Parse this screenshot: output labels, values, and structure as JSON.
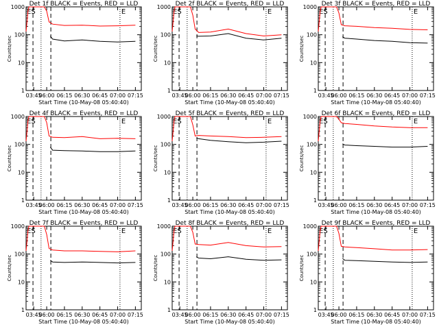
{
  "chart_data": [
    {
      "type": "line",
      "title": "Det 1f BLACK = Events, RED = LLD",
      "xlabel": "Start Time (10-May-08 05:40:40)",
      "ylabel": "Counts/sec",
      "y_scale": "log",
      "ylim": [
        1,
        1000
      ],
      "xlim": [
        "03:37",
        "07:20"
      ],
      "x_ticks": [
        "03:45",
        "06:00",
        "06:15",
        "06:30",
        "06:45",
        "07:00",
        "07:15"
      ],
      "y_ticks": [
        "1",
        "10",
        "100",
        "1000"
      ],
      "markers": [
        "ES",
        "E"
      ],
      "series": [
        {
          "color": "#ff0000",
          "x": [
            "03:37",
            "03:38",
            "03:39",
            "03:40",
            "03:42",
            "03:44",
            "05:58",
            "06:00",
            "06:02",
            "06:05",
            "06:15",
            "06:30",
            "06:45",
            "07:00",
            "07:15"
          ],
          "values": [
            130,
            300,
            700,
            1000,
            1000,
            1000,
            1000,
            700,
            290,
            240,
            215,
            220,
            205,
            210,
            220
          ]
        },
        {
          "color": "#000000",
          "x": [
            "06:03",
            "06:05",
            "06:15",
            "06:30",
            "06:45",
            "07:00",
            "07:15"
          ],
          "values": [
            90,
            70,
            60,
            65,
            58,
            55,
            58
          ]
        }
      ]
    },
    {
      "type": "line",
      "title": "Det 2f BLACK = Events, RED = LLD",
      "xlabel": "Start Time (10-May-08 05:40:40)",
      "ylabel": "Counts/sec",
      "y_scale": "log",
      "ylim": [
        1,
        1000
      ],
      "xlim": [
        "03:37",
        "07:20"
      ],
      "x_ticks": [
        "03:45",
        "06:00",
        "06:15",
        "06:30",
        "06:45",
        "07:00",
        "07:15"
      ],
      "y_ticks": [
        "1",
        "10",
        "100",
        "1000"
      ],
      "markers": [
        "ES",
        "E"
      ],
      "series": [
        {
          "color": "#ff0000",
          "x": [
            "03:37",
            "03:38",
            "03:39",
            "03:40",
            "03:42",
            "03:44",
            "05:58",
            "06:00",
            "06:02",
            "06:05",
            "06:15",
            "06:30",
            "06:45",
            "07:00",
            "07:15"
          ],
          "values": [
            130,
            300,
            700,
            1000,
            1000,
            1000,
            1000,
            500,
            160,
            120,
            125,
            160,
            110,
            90,
            100
          ]
        },
        {
          "color": "#000000",
          "x": [
            "06:03",
            "06:05",
            "06:15",
            "06:30",
            "06:45",
            "07:00",
            "07:15"
          ],
          "values": [
            90,
            88,
            90,
            110,
            75,
            65,
            75
          ]
        }
      ]
    },
    {
      "type": "line",
      "title": "Det 3f BLACK = Events, RED = LLD",
      "xlabel": "Start Time (10-May-08 05:40:40)",
      "ylabel": "Counts/sec",
      "y_scale": "log",
      "ylim": [
        1,
        1000
      ],
      "xlim": [
        "03:37",
        "07:20"
      ],
      "x_ticks": [
        "03:45",
        "06:00",
        "06:15",
        "06:30",
        "06:45",
        "07:00",
        "07:15"
      ],
      "y_ticks": [
        "1",
        "10",
        "100",
        "1000"
      ],
      "markers": [
        "ES",
        "E"
      ],
      "series": [
        {
          "color": "#ff0000",
          "x": [
            "03:37",
            "03:38",
            "03:39",
            "03:40",
            "03:42",
            "03:44",
            "05:58",
            "06:00",
            "06:02",
            "06:05",
            "06:15",
            "06:30",
            "06:45",
            "07:00",
            "07:15"
          ],
          "values": [
            130,
            300,
            700,
            1000,
            1000,
            1000,
            1000,
            600,
            230,
            210,
            200,
            180,
            170,
            155,
            150
          ]
        },
        {
          "color": "#000000",
          "x": [
            "06:03",
            "06:05",
            "06:15",
            "06:30",
            "06:45",
            "07:00",
            "07:15"
          ],
          "values": [
            85,
            75,
            70,
            62,
            58,
            52,
            50
          ]
        }
      ]
    },
    {
      "type": "line",
      "title": "Det 4f BLACK = Events, RED = LLD",
      "xlabel": "Start Time (10-May-08 05:40:40)",
      "ylabel": "Counts/sec",
      "y_scale": "log",
      "ylim": [
        1,
        1000
      ],
      "xlim": [
        "03:37",
        "07:20"
      ],
      "x_ticks": [
        "03:45",
        "06:00",
        "06:15",
        "06:30",
        "06:45",
        "07:00",
        "07:15"
      ],
      "y_ticks": [
        "1",
        "10",
        "100",
        "1000"
      ],
      "markers": [
        "ES",
        "E"
      ],
      "series": [
        {
          "color": "#ff0000",
          "x": [
            "03:37",
            "03:38",
            "03:39",
            "03:40",
            "03:42",
            "03:44",
            "05:58",
            "06:00",
            "06:02",
            "06:05",
            "06:15",
            "06:30",
            "06:45",
            "07:00",
            "07:15"
          ],
          "values": [
            130,
            300,
            700,
            1000,
            1000,
            1000,
            1000,
            600,
            200,
            180,
            175,
            190,
            160,
            165,
            160
          ]
        },
        {
          "color": "#000000",
          "x": [
            "06:03",
            "06:05",
            "06:15",
            "06:30",
            "06:45",
            "07:00",
            "07:15"
          ],
          "values": [
            80,
            62,
            60,
            58,
            55,
            55,
            58
          ]
        }
      ]
    },
    {
      "type": "line",
      "title": "Det 5f BLACK = Events, RED = LLD",
      "xlabel": "Start Time (10-May-08 05:40:40)",
      "ylabel": "Counts/sec",
      "y_scale": "log",
      "ylim": [
        1,
        1000
      ],
      "xlim": [
        "03:37",
        "07:20"
      ],
      "x_ticks": [
        "03:45",
        "06:00",
        "06:15",
        "06:30",
        "06:45",
        "07:00",
        "07:15"
      ],
      "y_ticks": [
        "1",
        "10",
        "100",
        "1000"
      ],
      "markers": [
        "ES",
        "E"
      ],
      "series": [
        {
          "color": "#ff0000",
          "x": [
            "03:37",
            "03:38",
            "03:39",
            "03:40",
            "03:42",
            "03:44",
            "05:58",
            "06:00",
            "06:02",
            "06:05",
            "06:15",
            "06:30",
            "06:45",
            "07:00",
            "07:15"
          ],
          "values": [
            130,
            300,
            700,
            1000,
            1000,
            1000,
            1000,
            500,
            200,
            210,
            200,
            190,
            175,
            180,
            190
          ]
        },
        {
          "color": "#000000",
          "x": [
            "06:03",
            "06:05",
            "06:15",
            "06:30",
            "06:45",
            "07:00",
            "07:15"
          ],
          "values": [
            170,
            160,
            140,
            125,
            115,
            120,
            130
          ]
        }
      ]
    },
    {
      "type": "line",
      "title": "Det 6f BLACK = Events, RED = LLD",
      "xlabel": "Start Time (10-May-08 05:40:40)",
      "ylabel": "Counts/sec",
      "y_scale": "log",
      "ylim": [
        1,
        1000
      ],
      "xlim": [
        "03:37",
        "07:20"
      ],
      "x_ticks": [
        "03:45",
        "06:00",
        "06:15",
        "06:30",
        "06:45",
        "07:00",
        "07:15"
      ],
      "y_ticks": [
        "1",
        "10",
        "100",
        "1000"
      ],
      "markers": [
        "ES",
        "E"
      ],
      "series": [
        {
          "color": "#ff0000",
          "x": [
            "03:37",
            "03:38",
            "03:39",
            "03:40",
            "03:42",
            "03:44",
            "05:58",
            "06:00",
            "06:02",
            "06:05",
            "06:15",
            "06:30",
            "06:45",
            "07:00",
            "07:15"
          ],
          "values": [
            130,
            300,
            700,
            1000,
            1000,
            1000,
            1000,
            800,
            600,
            560,
            520,
            460,
            420,
            400,
            400
          ]
        },
        {
          "color": "#000000",
          "x": [
            "06:03",
            "06:05",
            "06:15",
            "06:30",
            "06:45",
            "07:00",
            "07:15"
          ],
          "values": [
            105,
            95,
            90,
            85,
            80,
            80,
            85
          ]
        }
      ]
    },
    {
      "type": "line",
      "title": "Det 7f BLACK = Events, RED = LLD",
      "xlabel": "Start Time (10-May-08 05:40:40)",
      "ylabel": "Counts/sec",
      "y_scale": "log",
      "ylim": [
        1,
        1000
      ],
      "xlim": [
        "03:37",
        "07:20"
      ],
      "x_ticks": [
        "03:45",
        "06:00",
        "06:15",
        "06:30",
        "06:45",
        "07:00",
        "07:15"
      ],
      "y_ticks": [
        "1",
        "10",
        "100",
        "1000"
      ],
      "markers": [
        "ES",
        "E"
      ],
      "series": [
        {
          "color": "#ff0000",
          "x": [
            "03:37",
            "03:38",
            "03:39",
            "03:40",
            "03:42",
            "03:44",
            "05:58",
            "06:00",
            "06:02",
            "06:05",
            "06:15",
            "06:30",
            "06:45",
            "07:00",
            "07:15"
          ],
          "values": [
            130,
            300,
            700,
            1000,
            1000,
            1000,
            1000,
            500,
            160,
            140,
            130,
            130,
            125,
            120,
            130
          ]
        },
        {
          "color": "#000000",
          "x": [
            "06:03",
            "06:05",
            "06:15",
            "06:30",
            "06:45",
            "07:00",
            "07:15"
          ],
          "values": [
            60,
            52,
            50,
            52,
            50,
            48,
            50
          ]
        }
      ]
    },
    {
      "type": "line",
      "title": "Det 8f BLACK = Events, RED = LLD",
      "xlabel": "Start Time (10-May-08 05:40:40)",
      "ylabel": "Counts/sec",
      "y_scale": "log",
      "ylim": [
        1,
        1000
      ],
      "xlim": [
        "03:37",
        "07:20"
      ],
      "x_ticks": [
        "03:45",
        "06:00",
        "06:15",
        "06:30",
        "06:45",
        "07:00",
        "07:15"
      ],
      "y_ticks": [
        "1",
        "10",
        "100",
        "1000"
      ],
      "markers": [
        "ES",
        "E"
      ],
      "series": [
        {
          "color": "#ff0000",
          "x": [
            "03:37",
            "03:38",
            "03:39",
            "03:40",
            "03:42",
            "03:44",
            "05:58",
            "06:00",
            "06:02",
            "06:05",
            "06:15",
            "06:30",
            "06:45",
            "07:00",
            "07:15"
          ],
          "values": [
            130,
            300,
            700,
            1000,
            1000,
            1000,
            1000,
            600,
            230,
            220,
            210,
            260,
            200,
            180,
            185
          ]
        },
        {
          "color": "#000000",
          "x": [
            "06:03",
            "06:05",
            "06:15",
            "06:30",
            "06:45",
            "07:00",
            "07:15"
          ],
          "values": [
            80,
            72,
            68,
            80,
            65,
            60,
            62
          ]
        }
      ]
    },
    {
      "type": "line",
      "title": "Det 9f BLACK = Events, RED = LLD",
      "xlabel": "Start Time (10-May-08 05:40:40)",
      "ylabel": "Counts/sec",
      "y_scale": "log",
      "ylim": [
        1,
        1000
      ],
      "xlim": [
        "03:37",
        "07:20"
      ],
      "x_ticks": [
        "03:45",
        "06:00",
        "06:15",
        "06:30",
        "06:45",
        "07:00",
        "07:15"
      ],
      "y_ticks": [
        "1",
        "10",
        "100",
        "1000"
      ],
      "markers": [
        "ES",
        "E"
      ],
      "series": [
        {
          "color": "#ff0000",
          "x": [
            "03:37",
            "03:38",
            "03:39",
            "03:40",
            "03:42",
            "03:44",
            "05:58",
            "06:00",
            "06:02",
            "06:05",
            "06:15",
            "06:30",
            "06:45",
            "07:00",
            "07:15"
          ],
          "values": [
            130,
            300,
            700,
            1000,
            1000,
            1000,
            1000,
            550,
            190,
            180,
            170,
            155,
            140,
            140,
            145
          ]
        },
        {
          "color": "#000000",
          "x": [
            "06:03",
            "06:05",
            "06:15",
            "06:30",
            "06:45",
            "07:00",
            "07:15"
          ],
          "values": [
            70,
            60,
            58,
            55,
            52,
            50,
            52
          ]
        }
      ]
    }
  ]
}
